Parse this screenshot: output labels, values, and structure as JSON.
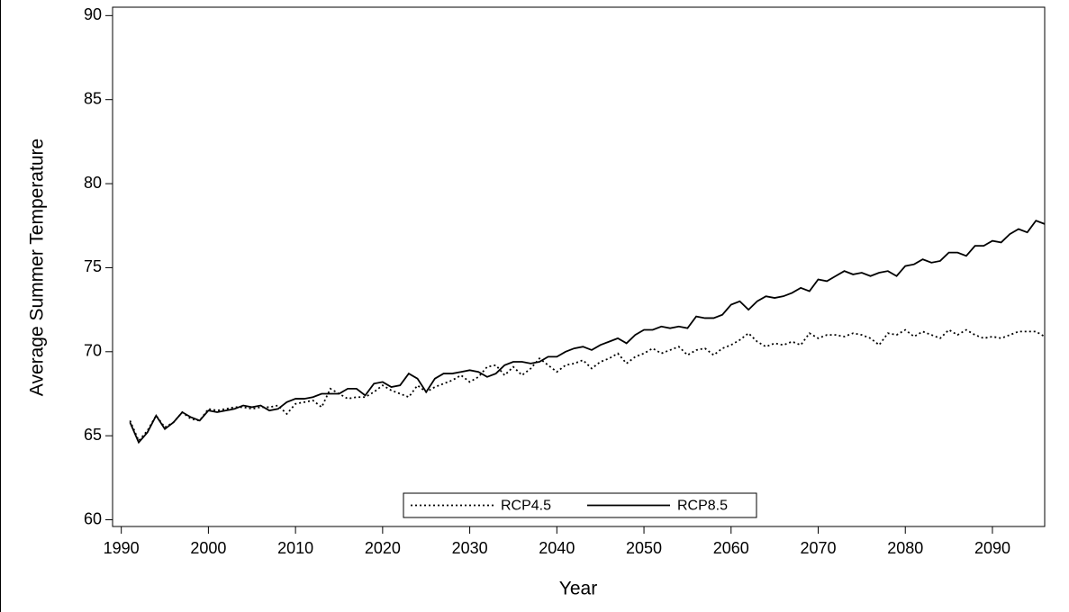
{
  "chart_data": {
    "type": "line",
    "x_label": "Year",
    "y_label": "Average Summer Temperature",
    "x": [
      1991,
      1992,
      1993,
      1994,
      1995,
      1996,
      1997,
      1998,
      1999,
      2000,
      2001,
      2002,
      2003,
      2004,
      2005,
      2006,
      2007,
      2008,
      2009,
      2010,
      2011,
      2012,
      2013,
      2014,
      2015,
      2016,
      2017,
      2018,
      2019,
      2020,
      2021,
      2022,
      2023,
      2024,
      2025,
      2026,
      2027,
      2028,
      2029,
      2030,
      2031,
      2032,
      2033,
      2034,
      2035,
      2036,
      2037,
      2038,
      2039,
      2040,
      2041,
      2042,
      2043,
      2044,
      2045,
      2046,
      2047,
      2048,
      2049,
      2050,
      2051,
      2052,
      2053,
      2054,
      2055,
      2056,
      2057,
      2058,
      2059,
      2060,
      2061,
      2062,
      2063,
      2064,
      2065,
      2066,
      2067,
      2068,
      2069,
      2070,
      2071,
      2072,
      2073,
      2074,
      2075,
      2076,
      2077,
      2078,
      2079,
      2080,
      2081,
      2082,
      2083,
      2084,
      2085,
      2086,
      2087,
      2088,
      2089,
      2090,
      2091,
      2092,
      2093,
      2094,
      2095,
      2096
    ],
    "series": [
      {
        "name": "RCP4.5",
        "color": "#000000",
        "style": "dotted",
        "values": [
          65.9,
          64.7,
          65.3,
          66.2,
          65.5,
          65.8,
          66.4,
          66.0,
          65.9,
          66.6,
          66.5,
          66.6,
          66.7,
          66.7,
          66.6,
          66.7,
          66.7,
          66.8,
          66.3,
          66.9,
          67.0,
          67.1,
          66.7,
          67.8,
          67.5,
          67.2,
          67.3,
          67.3,
          67.6,
          68.0,
          67.7,
          67.5,
          67.3,
          68.0,
          67.6,
          67.9,
          68.1,
          68.3,
          68.6,
          68.2,
          68.5,
          69.1,
          69.2,
          68.6,
          69.1,
          68.6,
          69.0,
          69.6,
          69.2,
          68.8,
          69.2,
          69.3,
          69.5,
          69.0,
          69.4,
          69.6,
          69.9,
          69.3,
          69.7,
          69.9,
          70.2,
          69.9,
          70.1,
          70.3,
          69.8,
          70.1,
          70.2,
          69.8,
          70.2,
          70.4,
          70.7,
          71.1,
          70.6,
          70.3,
          70.5,
          70.4,
          70.6,
          70.4,
          71.1,
          70.8,
          71.0,
          71.0,
          70.9,
          71.1,
          71.0,
          70.8,
          70.4,
          71.1,
          71.0,
          71.3,
          70.9,
          71.2,
          71.0,
          70.8,
          71.3,
          71.0,
          71.3,
          71.0,
          70.8,
          70.9,
          70.8,
          71.0,
          71.2,
          71.2,
          71.2,
          70.9
        ]
      },
      {
        "name": "RCP8.5",
        "color": "#000000",
        "style": "solid",
        "values": [
          65.8,
          64.6,
          65.2,
          66.2,
          65.4,
          65.8,
          66.4,
          66.1,
          65.9,
          66.5,
          66.4,
          66.5,
          66.6,
          66.8,
          66.7,
          66.8,
          66.5,
          66.6,
          67.0,
          67.2,
          67.2,
          67.3,
          67.5,
          67.5,
          67.5,
          67.8,
          67.8,
          67.4,
          68.1,
          68.2,
          67.9,
          68.0,
          68.7,
          68.4,
          67.6,
          68.4,
          68.7,
          68.7,
          68.8,
          68.9,
          68.8,
          68.5,
          68.7,
          69.2,
          69.4,
          69.4,
          69.3,
          69.4,
          69.7,
          69.7,
          70.0,
          70.2,
          70.3,
          70.1,
          70.4,
          70.6,
          70.8,
          70.5,
          71.0,
          71.3,
          71.3,
          71.5,
          71.4,
          71.5,
          71.4,
          72.1,
          72.0,
          72.0,
          72.2,
          72.8,
          73.0,
          72.5,
          73.0,
          73.3,
          73.2,
          73.3,
          73.5,
          73.8,
          73.6,
          74.3,
          74.2,
          74.5,
          74.8,
          74.6,
          74.7,
          74.5,
          74.7,
          74.8,
          74.5,
          75.1,
          75.2,
          75.5,
          75.3,
          75.4,
          75.9,
          75.9,
          75.7,
          76.3,
          76.3,
          76.6,
          76.5,
          77.0,
          77.3,
          77.1,
          77.8,
          77.6
        ]
      }
    ],
    "xlim": [
      1989,
      2096
    ],
    "ylim": [
      59.6,
      90.5
    ],
    "xticks": [
      1990,
      2000,
      2010,
      2020,
      2030,
      2040,
      2050,
      2060,
      2070,
      2080,
      2090
    ],
    "yticks": [
      60,
      65,
      70,
      75,
      80,
      85,
      90
    ],
    "legend": "bottom"
  }
}
